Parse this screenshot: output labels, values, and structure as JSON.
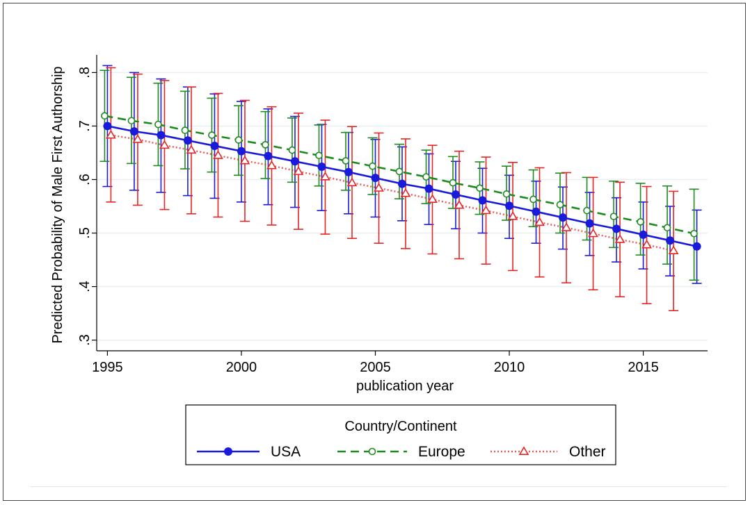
{
  "chart_data": {
    "type": "line",
    "title": "",
    "xlabel": "publication year",
    "ylabel": "Predicted Probability of Male First Authorship",
    "xlim": [
      1994.6,
      2017.4
    ],
    "ylim": [
      0.28,
      0.82
    ],
    "x_ticks": [
      1995,
      2000,
      2005,
      2010,
      2015
    ],
    "y_ticks": [
      0.3,
      0.4,
      0.5,
      0.6,
      0.7,
      0.8
    ],
    "y_tick_labels": [
      ".3",
      ".4",
      ".5",
      ".6",
      ".7",
      ".8"
    ],
    "grid": "horizontal",
    "legend": {
      "title": "Country/Continent",
      "position": "bottom"
    },
    "series": [
      {
        "name": "USA",
        "color": "#1a1adb",
        "line_style": "solid",
        "marker": "filled-circle",
        "x": [
          1995,
          1996,
          1997,
          1998,
          1999,
          2000,
          2001,
          2002,
          2003,
          2004,
          2005,
          2006,
          2007,
          2008,
          2009,
          2010,
          2011,
          2012,
          2013,
          2014,
          2015,
          2016,
          2017
        ],
        "y": [
          0.7,
          0.69,
          0.683,
          0.673,
          0.663,
          0.653,
          0.644,
          0.634,
          0.624,
          0.614,
          0.603,
          0.592,
          0.583,
          0.572,
          0.561,
          0.551,
          0.54,
          0.529,
          0.518,
          0.508,
          0.497,
          0.486,
          0.475
        ],
        "ci_low": [
          0.587,
          0.58,
          0.576,
          0.57,
          0.565,
          0.558,
          0.553,
          0.548,
          0.542,
          0.536,
          0.53,
          0.523,
          0.516,
          0.508,
          0.5,
          0.49,
          0.481,
          0.47,
          0.458,
          0.446,
          0.433,
          0.42,
          0.406
        ],
        "ci_high": [
          0.813,
          0.8,
          0.788,
          0.773,
          0.76,
          0.746,
          0.732,
          0.718,
          0.703,
          0.688,
          0.675,
          0.661,
          0.648,
          0.634,
          0.621,
          0.608,
          0.597,
          0.586,
          0.576,
          0.566,
          0.558,
          0.55,
          0.543
        ]
      },
      {
        "name": "Europe",
        "color": "#1e8a1e",
        "line_style": "dashed",
        "marker": "hollow-circle",
        "x": [
          1995,
          1996,
          1997,
          1998,
          1999,
          2000,
          2001,
          2002,
          2003,
          2004,
          2005,
          2006,
          2007,
          2008,
          2009,
          2010,
          2011,
          2012,
          2013,
          2014,
          2015,
          2016,
          2017
        ],
        "y": [
          0.719,
          0.71,
          0.703,
          0.692,
          0.683,
          0.674,
          0.665,
          0.655,
          0.645,
          0.635,
          0.625,
          0.615,
          0.605,
          0.594,
          0.584,
          0.573,
          0.563,
          0.553,
          0.542,
          0.531,
          0.521,
          0.51,
          0.499
        ],
        "ci_low": [
          0.634,
          0.63,
          0.626,
          0.62,
          0.614,
          0.608,
          0.602,
          0.595,
          0.588,
          0.58,
          0.572,
          0.564,
          0.555,
          0.546,
          0.535,
          0.524,
          0.512,
          0.5,
          0.487,
          0.473,
          0.459,
          0.442,
          0.412
        ],
        "ci_high": [
          0.804,
          0.791,
          0.78,
          0.765,
          0.752,
          0.738,
          0.727,
          0.715,
          0.702,
          0.688,
          0.678,
          0.666,
          0.655,
          0.643,
          0.633,
          0.625,
          0.618,
          0.612,
          0.604,
          0.597,
          0.593,
          0.588,
          0.582
        ]
      },
      {
        "name": "Other",
        "color": "#e62424",
        "line_style": "dotted",
        "marker": "hollow-triangle",
        "x": [
          1995,
          1996,
          1997,
          1998,
          1999,
          2000,
          2001,
          2002,
          2003,
          2004,
          2005,
          2006,
          2007,
          2008,
          2009,
          2010,
          2011,
          2012,
          2013,
          2014,
          2015,
          2016
        ],
        "y": [
          0.683,
          0.675,
          0.664,
          0.655,
          0.645,
          0.635,
          0.626,
          0.615,
          0.605,
          0.594,
          0.584,
          0.574,
          0.563,
          0.552,
          0.542,
          0.531,
          0.52,
          0.51,
          0.499,
          0.488,
          0.478,
          0.467
        ],
        "ci_low": [
          0.558,
          0.552,
          0.544,
          0.536,
          0.53,
          0.522,
          0.515,
          0.507,
          0.498,
          0.49,
          0.481,
          0.471,
          0.461,
          0.452,
          0.442,
          0.43,
          0.418,
          0.407,
          0.394,
          0.381,
          0.368,
          0.355
        ],
        "ci_high": [
          0.809,
          0.797,
          0.785,
          0.773,
          0.761,
          0.748,
          0.736,
          0.724,
          0.711,
          0.699,
          0.687,
          0.676,
          0.664,
          0.653,
          0.642,
          0.632,
          0.622,
          0.613,
          0.604,
          0.595,
          0.587,
          0.578
        ]
      }
    ]
  }
}
